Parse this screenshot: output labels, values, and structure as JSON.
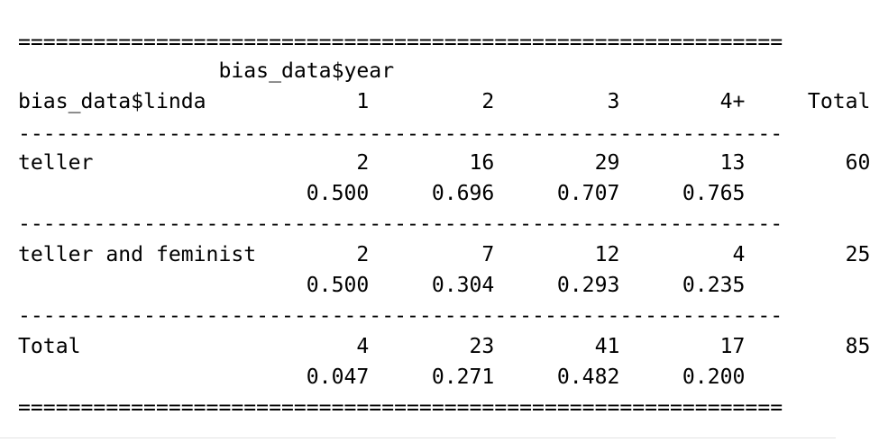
{
  "table": {
    "lines": [
      "=============================================================",
      "                bias_data$year",
      "bias_data$linda            1         2         3        4+     Total",
      "-------------------------------------------------------------",
      "teller                     2        16        29        13        60",
      "                       0.500     0.696     0.707     0.765",
      "-------------------------------------------------------------",
      "teller and feminist        2         7        12         4        25",
      "                       0.500     0.304     0.293     0.235",
      "-------------------------------------------------------------",
      "Total                      4        23        41        17        85",
      "                       0.047     0.271     0.482     0.200",
      "============================================================="
    ]
  }
}
